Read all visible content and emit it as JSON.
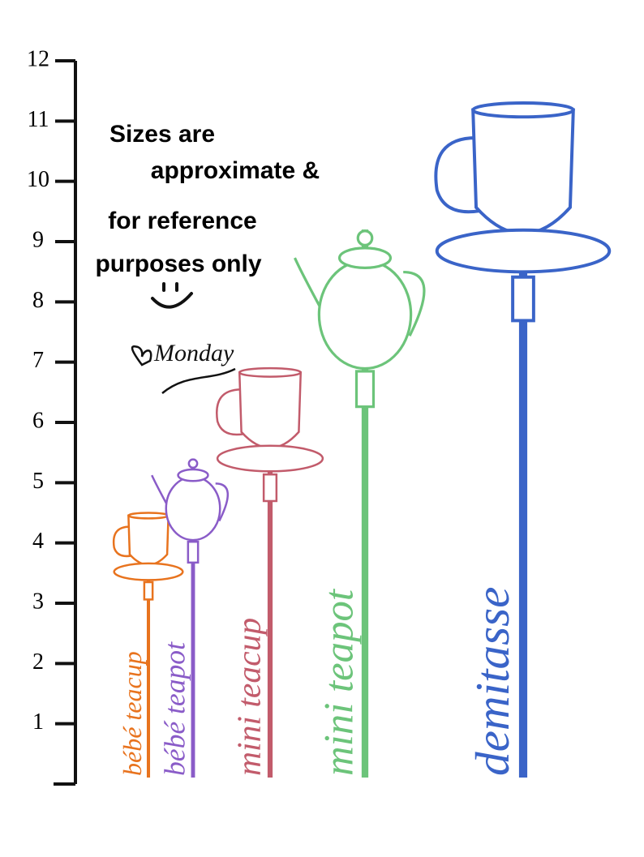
{
  "chart_data": {
    "type": "lollipop",
    "categories": [
      "bébé teacup",
      "bébé teapot",
      "mini teacup",
      "mini teapot",
      "demitasse"
    ],
    "values": [
      4.5,
      5.4,
      6.9,
      9.2,
      11.3
    ],
    "colors": [
      "#e8731e",
      "#8a5cc8",
      "#c25b6b",
      "#6cc47a",
      "#3a64c8"
    ],
    "ylim": [
      0,
      12
    ],
    "yticks": [
      1,
      2,
      3,
      4,
      5,
      6,
      7,
      8,
      9,
      10,
      11,
      12
    ],
    "annotation": [
      "Sizes are",
      "approximate &",
      "for reference",
      "purposes only"
    ],
    "signature": "Monday"
  }
}
